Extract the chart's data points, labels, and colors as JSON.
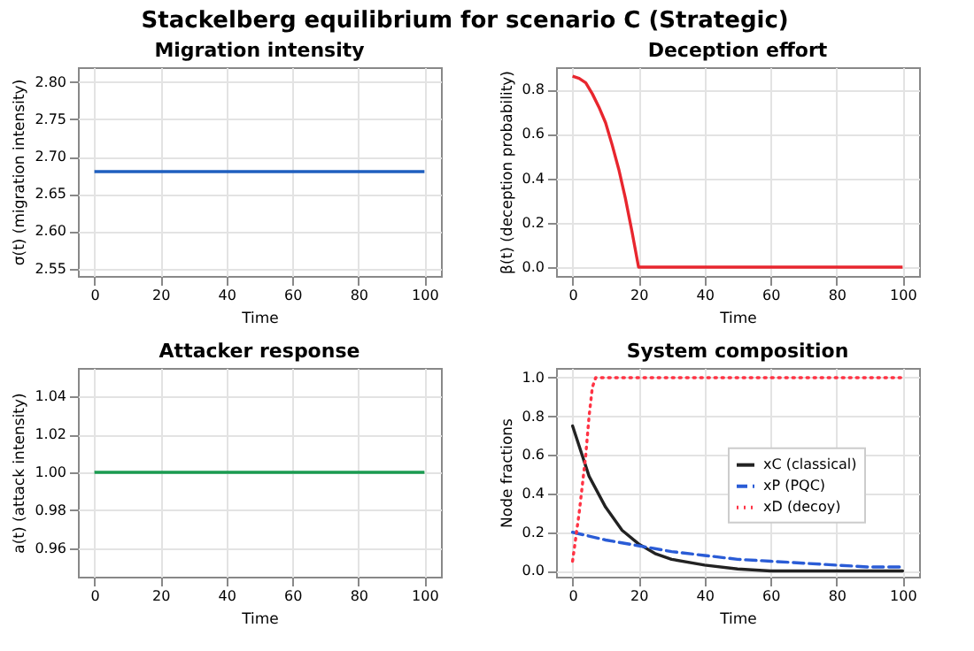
{
  "chart_data": [
    {
      "type": "line",
      "title": "Migration intensity",
      "annotations": [
        "Stackelberg equilibrium for scenario C (Strategic)"
      ],
      "xlabel": "Time",
      "ylabel": "σ(t) (migration intensity)",
      "xlim": [
        -5,
        105
      ],
      "xticks": [
        0,
        20,
        40,
        60,
        80,
        100
      ],
      "ylim": [
        2.54,
        2.82
      ],
      "yticks": [
        2.55,
        {
          "value": 2.6,
          "label": "2.60"
        },
        2.65,
        {
          "value": 2.7,
          "label": "2.70"
        },
        2.75,
        {
          "value": 2.8,
          "label": "2.80"
        }
      ],
      "grid": true,
      "line_style": "solid",
      "series": [
        {
          "color": "#1f5fbf",
          "x": [
            0,
            100
          ],
          "values": [
            2.68,
            2.68
          ]
        }
      ]
    },
    {
      "type": "line",
      "title": "Deception effort",
      "xlabel": "Time",
      "ylabel": "β(t) (deception probability)",
      "xlim": [
        -5,
        105
      ],
      "xticks": [
        0,
        20,
        40,
        60,
        80,
        100
      ],
      "ylim": [
        -0.04,
        0.9
      ],
      "yticks": [
        {
          "value": 0,
          "label": "0.0"
        },
        0.2,
        0.4,
        0.6,
        0.8
      ],
      "grid": true,
      "line_style": "solid",
      "series": [
        {
          "color": "#e8262e",
          "x": [
            0,
            2,
            4,
            6,
            8,
            10,
            12,
            14,
            16,
            18,
            20,
            100
          ],
          "values": [
            0.86,
            0.85,
            0.83,
            0.78,
            0.72,
            0.65,
            0.55,
            0.44,
            0.31,
            0.16,
            0.0,
            0.0
          ]
        }
      ]
    },
    {
      "type": "line",
      "title": "Attacker response",
      "xlabel": "Time",
      "ylabel": "a(t) (attack intensity)",
      "xlim": [
        -5,
        105
      ],
      "xticks": [
        0,
        20,
        40,
        60,
        80,
        100
      ],
      "ylim": [
        0.945,
        1.055
      ],
      "yticks": [
        0.96,
        0.98,
        {
          "value": 1,
          "label": "1.00"
        },
        1.02,
        1.04
      ],
      "grid": true,
      "line_style": "solid",
      "series": [
        {
          "color": "#1a9b50",
          "x": [
            0,
            100
          ],
          "values": [
            1.0,
            1.0
          ]
        }
      ]
    },
    {
      "type": "line",
      "title": "System composition",
      "xlabel": "Time",
      "ylabel": "Node fractions",
      "xlim": [
        -5,
        105
      ],
      "xticks": [
        0,
        20,
        40,
        60,
        80,
        100
      ],
      "ylim": [
        -0.03,
        1.05
      ],
      "yticks": [
        {
          "value": 0,
          "label": "0.0"
        },
        0.2,
        0.4,
        0.6,
        0.8,
        {
          "value": 1,
          "label": "1.0"
        }
      ],
      "grid": true,
      "legend": "right",
      "series": [
        {
          "name": "xC (classical)",
          "color": "#222222",
          "line_style": "solid",
          "x": [
            0,
            5,
            10,
            15,
            20,
            25,
            30,
            40,
            50,
            60,
            80,
            100
          ],
          "values": [
            0.75,
            0.49,
            0.33,
            0.21,
            0.14,
            0.09,
            0.06,
            0.03,
            0.01,
            0.0,
            0.0,
            0.0
          ]
        },
        {
          "name": "xP (PQC)",
          "color": "#2a5cd6",
          "line_style": "dashed",
          "x": [
            0,
            10,
            20,
            30,
            40,
            50,
            60,
            70,
            80,
            90,
            100
          ],
          "values": [
            0.2,
            0.16,
            0.13,
            0.1,
            0.08,
            0.06,
            0.05,
            0.04,
            0.03,
            0.02,
            0.02
          ]
        },
        {
          "name": "xD (decoy)",
          "color": "#ff3344",
          "line_style": "dotted",
          "x": [
            0,
            2,
            4,
            5,
            6,
            7,
            100
          ],
          "values": [
            0.05,
            0.3,
            0.6,
            0.8,
            0.95,
            1.0,
            1.0
          ]
        }
      ]
    }
  ]
}
